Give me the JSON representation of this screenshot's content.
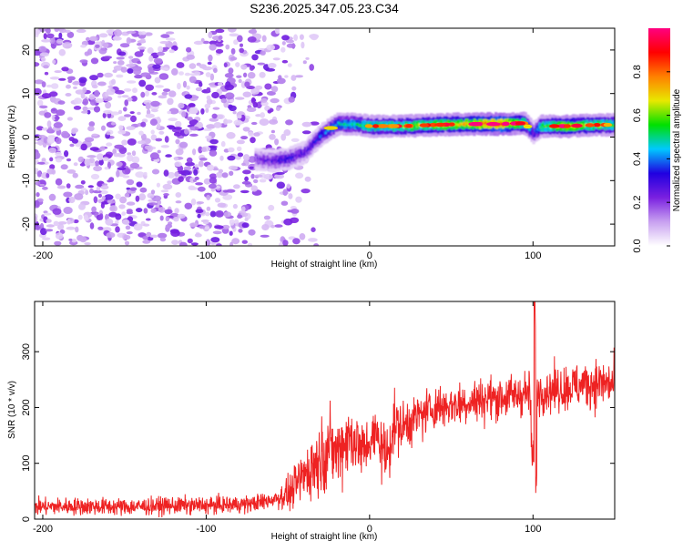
{
  "title": "S236.2025.347.05.23.C34",
  "chart_data": [
    {
      "type": "heatmap",
      "xlabel": "Height of straight line (km)",
      "ylabel": "Frequency (Hz)",
      "xlim": [
        -205,
        150
      ],
      "ylim": [
        -25,
        25
      ],
      "xticks": [
        -200,
        -100,
        0,
        100
      ],
      "yticks": [
        -20,
        -10,
        0,
        10,
        20
      ],
      "colorbar": {
        "label": "Normalized spectral amplitude",
        "ticks": [
          "0.0",
          "0.2",
          "0.4",
          "0.6",
          "0.8"
        ],
        "tick_values": [
          0,
          0.2,
          0.4,
          0.6,
          0.8
        ],
        "range": [
          0,
          1
        ],
        "colors": [
          "#ffffff",
          "#c8a0f0",
          "#7a20e0",
          "#2000e0",
          "#00c8ff",
          "#00e000",
          "#e8e800",
          "#ff8000",
          "#ff0000",
          "#ff0080"
        ]
      },
      "noise_region": {
        "x": [
          -205,
          -50
        ],
        "y": [
          -25,
          25
        ],
        "amplitude": [
          0.05,
          0.25
        ]
      },
      "signal_track": [
        {
          "x": -70,
          "f": -5.0,
          "a": 0.2
        },
        {
          "x": -60,
          "f": -5.5,
          "a": 0.25
        },
        {
          "x": -50,
          "f": -5.0,
          "a": 0.3
        },
        {
          "x": -40,
          "f": -3.5,
          "a": 0.25
        },
        {
          "x": -35,
          "f": -1.5,
          "a": 0.3
        },
        {
          "x": -30,
          "f": 0.5,
          "a": 0.35
        },
        {
          "x": -20,
          "f": 3.0,
          "a": 0.45
        },
        {
          "x": -10,
          "f": 3.0,
          "a": 0.5
        },
        {
          "x": 0,
          "f": 2.5,
          "a": 0.55
        },
        {
          "x": 20,
          "f": 2.5,
          "a": 0.6
        },
        {
          "x": 40,
          "f": 2.8,
          "a": 0.65
        },
        {
          "x": 60,
          "f": 3.0,
          "a": 0.7
        },
        {
          "x": 80,
          "f": 3.0,
          "a": 0.85
        },
        {
          "x": 95,
          "f": 3.2,
          "a": 0.6
        },
        {
          "x": 100,
          "f": 1.0,
          "a": 0.3
        },
        {
          "x": 105,
          "f": 2.5,
          "a": 0.55
        },
        {
          "x": 120,
          "f": 2.5,
          "a": 0.7
        },
        {
          "x": 140,
          "f": 2.8,
          "a": 0.6
        },
        {
          "x": 150,
          "f": 2.8,
          "a": 0.55
        }
      ]
    },
    {
      "type": "line",
      "xlabel": "Height of straight line (km)",
      "ylabel": "SNR (10 * v/v)",
      "xlim": [
        -205,
        150
      ],
      "ylim": [
        0,
        390
      ],
      "xticks": [
        -200,
        -100,
        0,
        100
      ],
      "yticks": [
        0,
        100,
        200,
        300
      ],
      "color": "#ee2222",
      "series": [
        {
          "name": "SNR",
          "x": [
            -205,
            -180,
            -150,
            -120,
            -90,
            -70,
            -60,
            -50,
            -45,
            -40,
            -35,
            -30,
            -25,
            -20,
            -15,
            -10,
            -5,
            0,
            5,
            10,
            15,
            20,
            30,
            40,
            50,
            60,
            70,
            80,
            90,
            98,
            100,
            101,
            102,
            104,
            110,
            120,
            130,
            140,
            150
          ],
          "y": [
            22,
            23,
            22,
            24,
            25,
            28,
            35,
            45,
            60,
            80,
            95,
            110,
            130,
            120,
            140,
            150,
            120,
            140,
            150,
            110,
            170,
            165,
            185,
            200,
            205,
            210,
            215,
            218,
            222,
            228,
            70,
            385,
            225,
            230,
            232,
            235,
            240,
            245,
            240
          ]
        }
      ],
      "noise_spread": [
        [
          -205,
          14
        ],
        [
          -60,
          14
        ],
        [
          -50,
          25
        ],
        [
          -40,
          45
        ],
        [
          -30,
          60
        ],
        [
          -20,
          55
        ],
        [
          -10,
          60
        ],
        [
          0,
          40
        ],
        [
          10,
          55
        ],
        [
          20,
          40
        ],
        [
          40,
          35
        ],
        [
          100,
          35
        ],
        [
          150,
          40
        ]
      ]
    }
  ]
}
